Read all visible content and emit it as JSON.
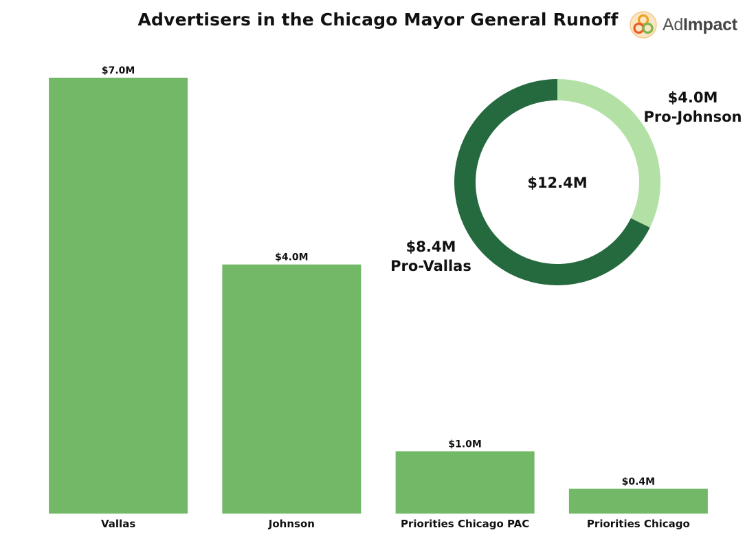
{
  "title": "Advertisers in the Chicago Mayor General Runoff",
  "logo": {
    "text_plain": "Ad",
    "text_bold": "Impact"
  },
  "colors": {
    "bar": "#72b866",
    "donut_dark": "#256a3e",
    "donut_light": "#b3e0a5"
  },
  "chart_data": [
    {
      "type": "bar",
      "title": "Advertisers in the Chicago Mayor General Runoff",
      "xlabel": "",
      "ylabel": "",
      "categories": [
        "Vallas",
        "Johnson",
        "Priorities Chicago PAC",
        "Priorities Chicago"
      ],
      "values": [
        7.0,
        4.0,
        1.0,
        0.4
      ],
      "value_labels": [
        "$7.0M",
        "$4.0M",
        "$1.0M",
        "$0.4M"
      ],
      "unit": "$M",
      "ylim": [
        0,
        7.0
      ],
      "grid": false
    },
    {
      "type": "pie",
      "style": "donut",
      "center_label": "$12.4M",
      "slices": [
        {
          "name": "Pro-Johnson",
          "value": 4.0,
          "value_label": "$4.0M",
          "color": "#b3e0a5"
        },
        {
          "name": "Pro-Vallas",
          "value": 8.4,
          "value_label": "$8.4M",
          "color": "#256a3e"
        }
      ]
    }
  ]
}
